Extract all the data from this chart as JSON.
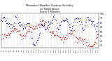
{
  "title": "Milwaukee Weather Outdoor Humidity\nvs Temperature\nEvery 5 Minutes",
  "blue_color": "#0000ff",
  "red_color": "#ff0000",
  "background_color": "#ffffff",
  "grid_color": "#888888",
  "ylim": [
    25,
    100
  ],
  "y_ticks": [
    30,
    40,
    50,
    60,
    70,
    80,
    90,
    100
  ],
  "num_points": 200,
  "seed": 7
}
